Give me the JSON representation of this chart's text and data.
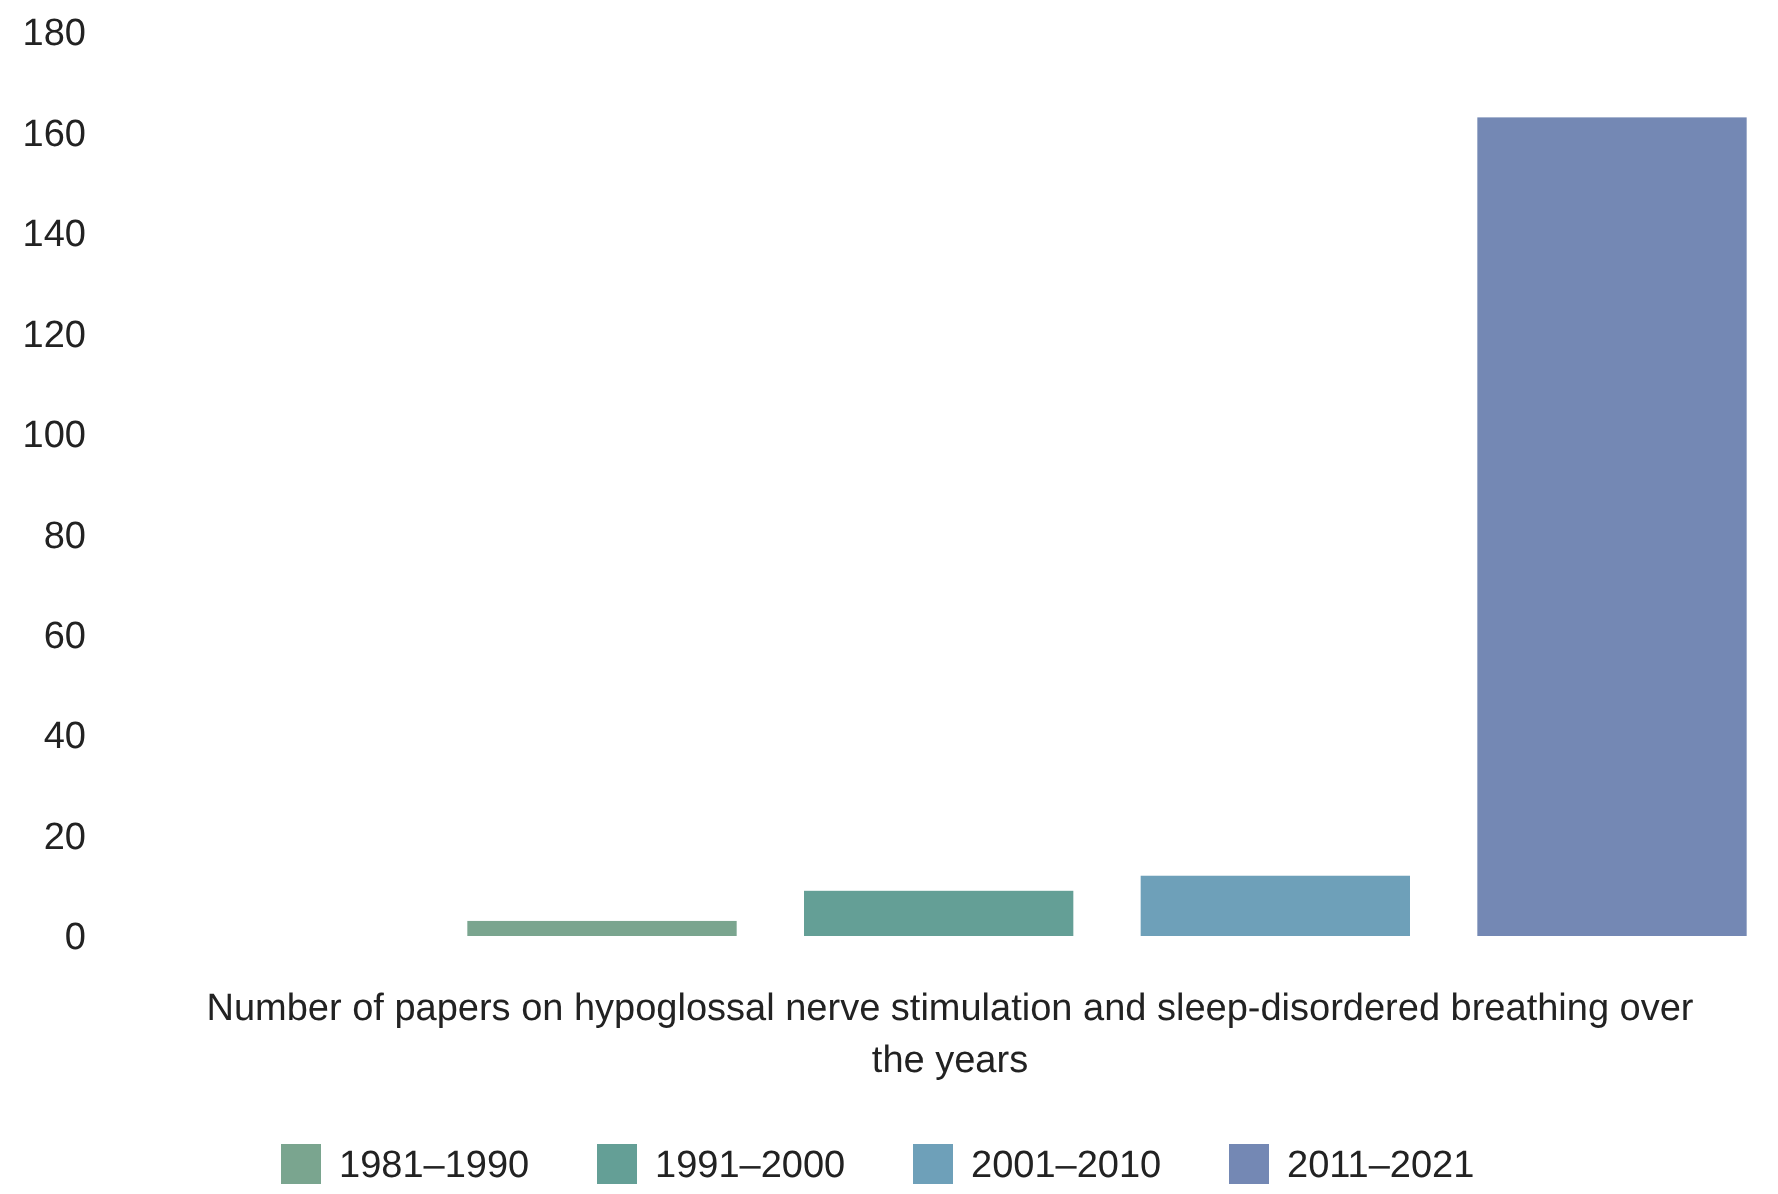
{
  "chart_data": {
    "type": "bar",
    "categories": [
      null
    ],
    "xlabel": "Number of papers on hypoglossal nerve stimulation and sleep-disordered breathing over the years",
    "series": [
      {
        "name": "1981–1990",
        "color": "#7aa58f",
        "values": [
          3
        ]
      },
      {
        "name": "1991–2000",
        "color": "#649f96",
        "values": [
          9
        ]
      },
      {
        "name": "2001–2010",
        "color": "#6ea0b9",
        "values": [
          12
        ]
      },
      {
        "name": "2011–2021",
        "color": "#7488b4",
        "values": [
          163
        ]
      }
    ],
    "ylim": [
      0,
      180
    ],
    "yticks": [
      0,
      20,
      40,
      60,
      80,
      100,
      120,
      140,
      160,
      180
    ],
    "grid": false,
    "legend": "bottom"
  }
}
